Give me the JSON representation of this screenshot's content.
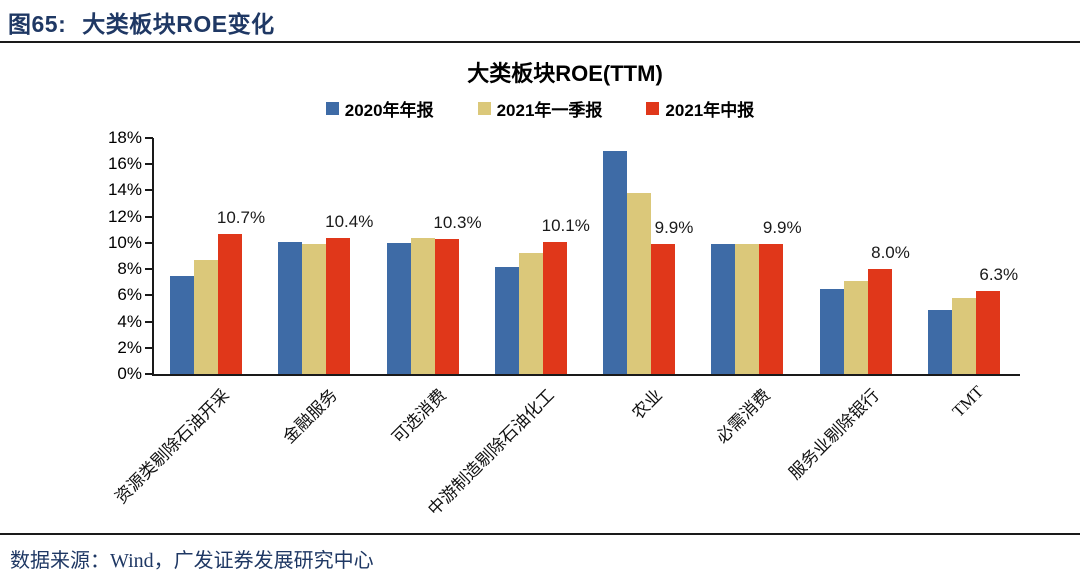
{
  "header": {
    "figure_label": "图65:",
    "title": "大类板块ROE变化"
  },
  "chart_data": {
    "type": "bar",
    "title": "大类板块ROE(TTM)",
    "categories": [
      "资源类剔除石油开采",
      "金融服务",
      "可选消费",
      "中游制造剔除石油化工",
      "农业",
      "必需消费",
      "服务业剔除银行",
      "TMT"
    ],
    "series": [
      {
        "name": "2020年年报",
        "color": "#3E6BA6",
        "values": [
          7.5,
          10.1,
          10.0,
          8.2,
          17.0,
          9.9,
          6.5,
          4.9
        ]
      },
      {
        "name": "2021年一季报",
        "color": "#DBC87A",
        "values": [
          8.7,
          9.9,
          10.4,
          9.2,
          13.8,
          9.9,
          7.1,
          5.8
        ]
      },
      {
        "name": "2021年中报",
        "color": "#E0371A",
        "values": [
          10.7,
          10.4,
          10.3,
          10.1,
          9.9,
          9.9,
          8.0,
          6.3
        ],
        "data_labels": [
          "10.7%",
          "10.4%",
          "10.3%",
          "10.1%",
          "9.9%",
          "9.9%",
          "8.0%",
          "6.3%"
        ]
      }
    ],
    "ylim": [
      0,
      18
    ],
    "ytick_step": 2,
    "ytick_suffix": "%",
    "legend_position": "top",
    "grid": false,
    "axis_color": "#1a1a1a"
  },
  "footer": {
    "source": "数据来源：Wind，广发证券发展研究中心"
  }
}
